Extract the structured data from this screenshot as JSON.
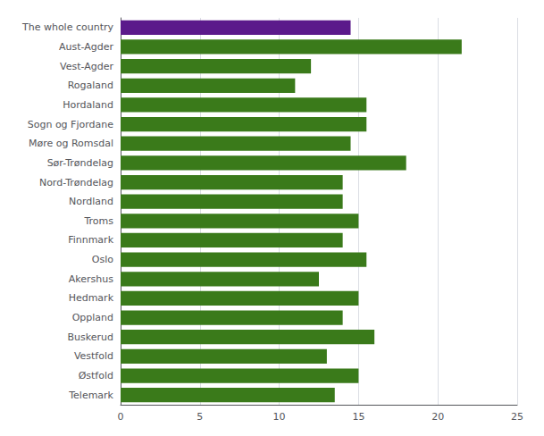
{
  "chart_data": {
    "type": "bar",
    "orientation": "horizontal",
    "categories": [
      "The whole country",
      "Aust-Agder",
      "Vest-Agder",
      "Rogaland",
      "Hordaland",
      "Sogn og Fjordane",
      "Møre og Romsdal",
      "Sør-Trøndelag",
      "Nord-Trøndelag",
      "Nordland",
      "Troms",
      "Finnmark",
      "Oslo",
      "Akershus",
      "Hedmark",
      "Oppland",
      "Buskerud",
      "Vestfold",
      "Østfold",
      "Telemark"
    ],
    "values": [
      14.5,
      21.5,
      12.0,
      11.0,
      15.5,
      15.5,
      14.5,
      18.0,
      14.0,
      14.0,
      15.0,
      14.0,
      15.5,
      12.5,
      15.0,
      14.0,
      16.0,
      13.0,
      15.0,
      13.5
    ],
    "colors": [
      "#5b1a8b",
      "#3a7a1a",
      "#3a7a1a",
      "#3a7a1a",
      "#3a7a1a",
      "#3a7a1a",
      "#3a7a1a",
      "#3a7a1a",
      "#3a7a1a",
      "#3a7a1a",
      "#3a7a1a",
      "#3a7a1a",
      "#3a7a1a",
      "#3a7a1a",
      "#3a7a1a",
      "#3a7a1a",
      "#3a7a1a",
      "#3a7a1a",
      "#3a7a1a",
      "#3a7a1a"
    ],
    "xlim": [
      0,
      25
    ],
    "xticks": [
      0,
      5,
      10,
      15,
      20,
      25
    ],
    "grid": true
  }
}
